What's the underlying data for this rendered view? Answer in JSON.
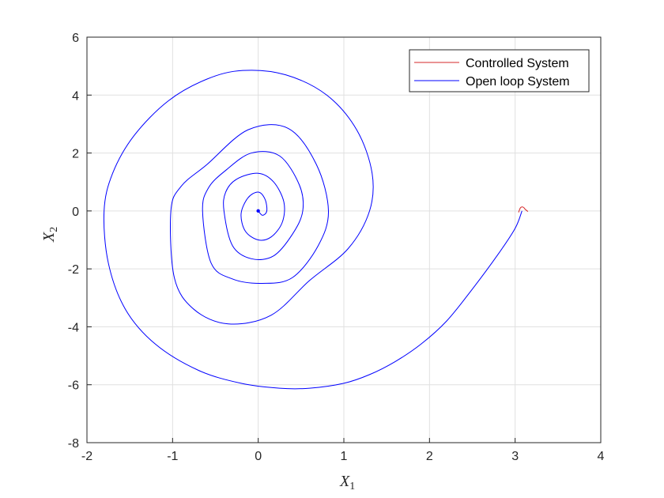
{
  "chart_data": {
    "type": "line",
    "xlabel": "X",
    "xlabel_sub": "1",
    "ylabel": "X",
    "ylabel_sub": "2",
    "xlim": [
      -2,
      4
    ],
    "ylim": [
      -8,
      6
    ],
    "xticks": [
      -2,
      -1,
      0,
      1,
      2,
      3,
      4
    ],
    "yticks": [
      -8,
      -6,
      -4,
      -2,
      0,
      2,
      4,
      6
    ],
    "grid": true,
    "legend_position": "top-right",
    "colors": {
      "controlled": "#d62728",
      "open_loop": "#0000ff",
      "grid": "#e0e0e0",
      "axis": "#262626"
    },
    "series": [
      {
        "name": "Controlled System",
        "color": "#d62728",
        "x": [
          3.04,
          3.06,
          3.08,
          3.1,
          3.12,
          3.15
        ],
        "y": [
          -0.05,
          0.1,
          0.14,
          0.12,
          0.05,
          -0.02
        ]
      },
      {
        "name": "Open loop System",
        "color": "#0000ff",
        "x": [
          3.08,
          3.0,
          2.8,
          2.5,
          2.2,
          1.9,
          1.6,
          1.3,
          1.0,
          0.6,
          0.25,
          -0.2,
          -0.7,
          -1.2,
          -1.55,
          -1.75,
          -1.8,
          -1.7,
          -1.45,
          -1.05,
          -0.6,
          -0.18,
          0.32,
          0.8,
          1.15,
          1.33,
          1.3,
          1.05,
          0.6,
          0.15,
          -0.35,
          -0.75,
          -0.98,
          -1.02,
          -0.9,
          -0.6,
          -0.12,
          0.35,
          0.68,
          0.82,
          0.7,
          0.4,
          0.05,
          -0.3,
          -0.55,
          -0.65,
          -0.58,
          -0.38,
          -0.08,
          0.25,
          0.48,
          0.52,
          0.4,
          0.18,
          -0.08,
          -0.3,
          -0.4,
          -0.38,
          -0.25,
          0.0,
          0.18,
          0.3,
          0.28,
          0.15,
          0.0,
          -0.15,
          -0.2,
          -0.12,
          0.0,
          0.08,
          0.1,
          0.05,
          0.0
        ],
        "y": [
          0.0,
          -0.6,
          -1.5,
          -2.7,
          -3.8,
          -4.6,
          -5.2,
          -5.65,
          -5.95,
          -6.12,
          -6.12,
          -5.95,
          -5.5,
          -4.6,
          -3.4,
          -1.8,
          0.0,
          1.3,
          2.6,
          3.8,
          4.55,
          4.85,
          4.7,
          4.0,
          2.8,
          1.3,
          0.0,
          -1.3,
          -2.4,
          -3.6,
          -3.9,
          -3.4,
          -2.3,
          0.0,
          0.85,
          1.6,
          2.8,
          2.85,
          1.6,
          0.0,
          -1.2,
          -2.3,
          -2.5,
          -2.35,
          -1.8,
          0.0,
          0.8,
          1.4,
          2.0,
          1.9,
          0.9,
          0.0,
          -0.8,
          -1.55,
          -1.65,
          -1.2,
          0.0,
          0.65,
          1.1,
          1.3,
          1.0,
          0.3,
          -0.4,
          -0.9,
          -1.0,
          -0.7,
          -0.1,
          0.45,
          0.65,
          0.4,
          0.0,
          -0.15,
          0.0
        ]
      }
    ]
  }
}
